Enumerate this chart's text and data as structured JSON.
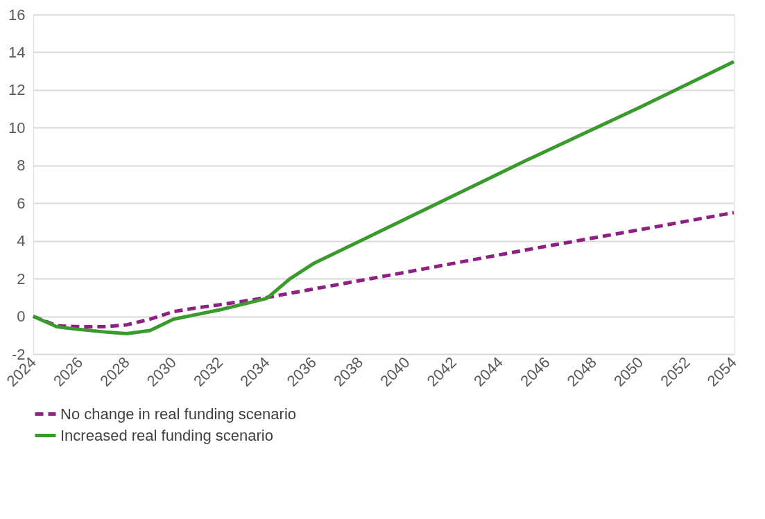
{
  "chart_data": {
    "type": "line",
    "xlim": [
      2024,
      2054
    ],
    "xticks": [
      2024,
      2026,
      2028,
      2030,
      2032,
      2034,
      2036,
      2038,
      2040,
      2042,
      2044,
      2046,
      2048,
      2050,
      2052,
      2054
    ],
    "ylim": [
      -2,
      16
    ],
    "yticks": [
      -2,
      0,
      2,
      4,
      6,
      8,
      10,
      12,
      14,
      16
    ],
    "grid": "y",
    "legend": "bottom",
    "series": [
      {
        "name": "No change in real funding scenario",
        "color": "#8e1f83",
        "line_style": "dashed",
        "x": [
          2024,
          2025,
          2026,
          2027,
          2028,
          2029,
          2030,
          2031,
          2032,
          2033,
          2034,
          2040,
          2045,
          2050,
          2054
        ],
        "values": [
          0,
          -0.5,
          -0.55,
          -0.55,
          -0.45,
          -0.15,
          0.25,
          0.45,
          0.62,
          0.8,
          1.0,
          2.35,
          3.5,
          4.6,
          5.5
        ]
      },
      {
        "name": "Increased real funding scenario",
        "color": "#3a9a2e",
        "line_style": "solid",
        "x": [
          2024,
          2025,
          2026,
          2027,
          2028,
          2029,
          2030,
          2031,
          2032,
          2033,
          2034,
          2035,
          2036,
          2040,
          2045,
          2050,
          2054
        ],
        "values": [
          0,
          -0.55,
          -0.7,
          -0.82,
          -0.92,
          -0.75,
          -0.15,
          0.1,
          0.35,
          0.65,
          0.95,
          2.0,
          2.8,
          5.2,
          8.2,
          11.1,
          13.5
        ]
      }
    ]
  }
}
